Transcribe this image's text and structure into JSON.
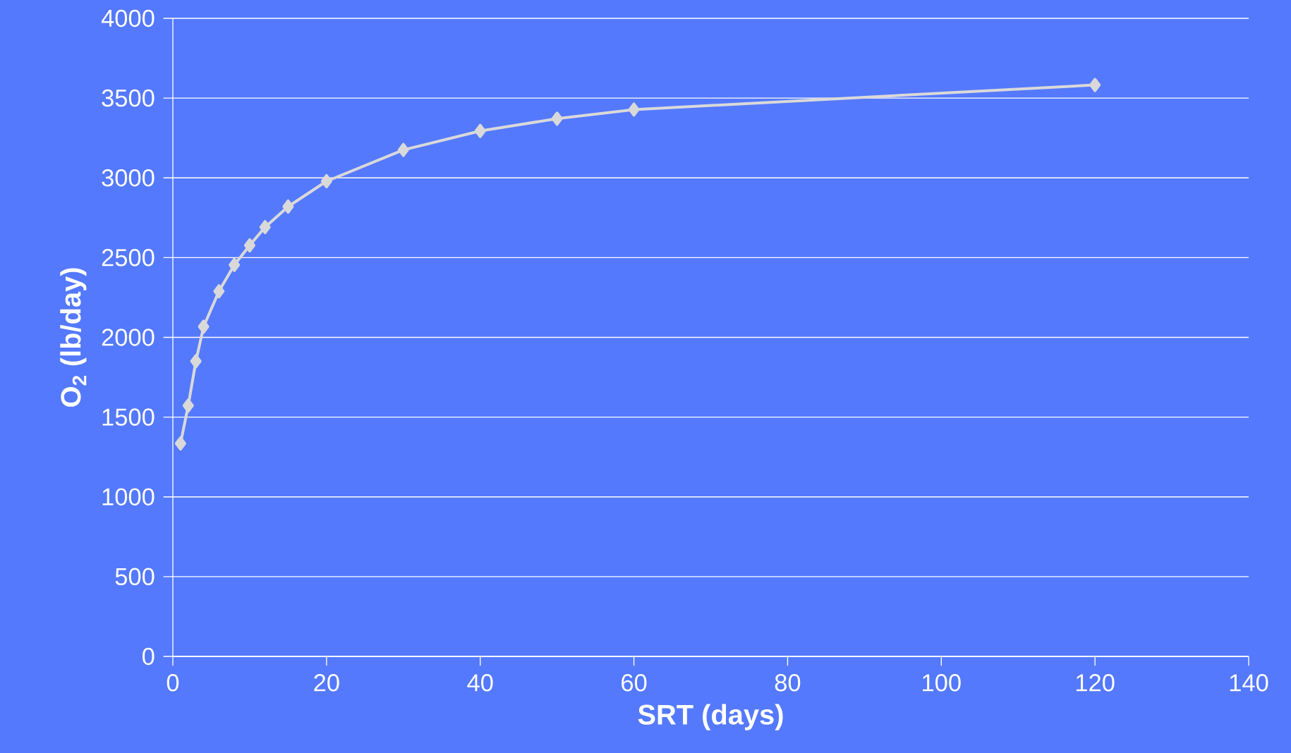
{
  "chart_data": {
    "type": "line",
    "xlabel": "SRT (days)",
    "ylabel": "**O$_{2}$ (lb/day)**",
    "x": [
      1,
      2,
      3,
      4,
      6,
      8,
      10,
      12,
      15,
      20,
      30,
      40,
      50,
      60,
      120
    ],
    "series": [
      {
        "color": "#d9d9d9",
        "values": [
          1335,
          1572,
          1851,
          2067,
          2289,
          2454,
          2577,
          2691,
          2820,
          2979,
          3175,
          3294,
          3371,
          3428,
          3582
        ]
      }
    ],
    "xlim": [
      0,
      140
    ],
    "xticks": [
      0,
      20,
      40,
      60,
      80,
      100,
      120,
      140
    ],
    "ylim": [
      0,
      4000
    ],
    "yticks": [
      0,
      500,
      1000,
      1500,
      2000,
      2500,
      3000,
      3500,
      4000
    ],
    "grid": "y",
    "marker": "diamond",
    "line_style": "solid"
  }
}
